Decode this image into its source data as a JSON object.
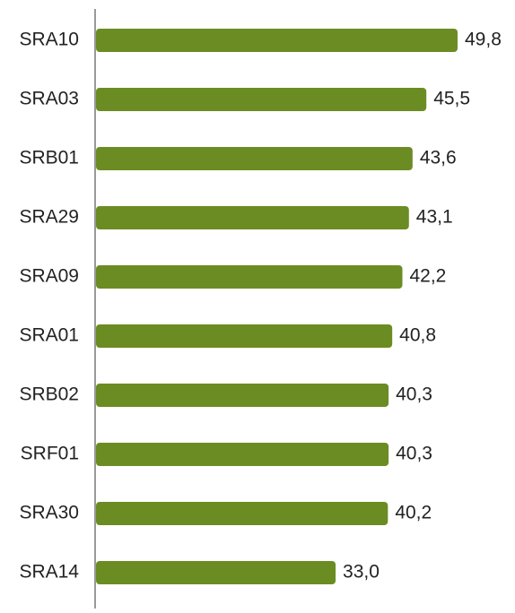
{
  "chart_data": {
    "type": "bar",
    "orientation": "horizontal",
    "color": "#6b8c23",
    "categories": [
      "SRA10",
      "SRA03",
      "SRB01",
      "SRA29",
      "SRA09",
      "SRA01",
      "SRB02",
      "SRF01",
      "SRA30",
      "SRA14"
    ],
    "values": [
      49.8,
      45.5,
      43.6,
      43.1,
      42.2,
      40.8,
      40.3,
      40.3,
      40.2,
      33.0
    ],
    "value_labels": [
      "49,8",
      "45,5",
      "43,6",
      "43,1",
      "42,2",
      "40,8",
      "40,3",
      "40,3",
      "40,2",
      "33,0"
    ]
  }
}
